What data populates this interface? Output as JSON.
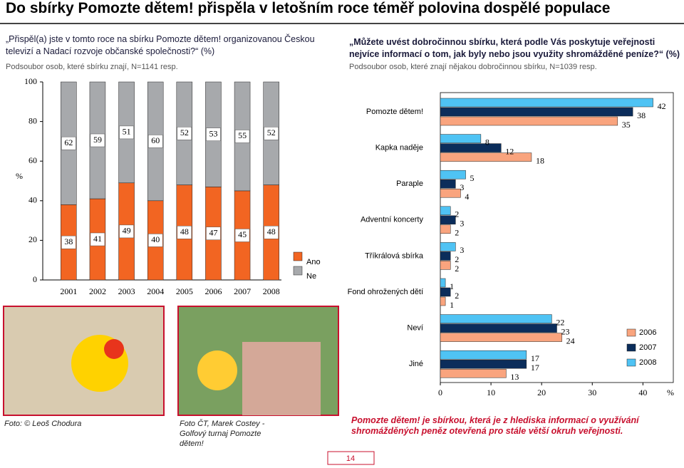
{
  "header": {
    "title": "Do sbírky Pomozte dětem! přispěla v letošním roce téměř polovina dospělé populace"
  },
  "left_question": {
    "question": "„Přispěl(a) jste v tomto roce na sbírku Pomozte dětem! organizovanou Českou televizí a Nadací rozvoje občanské společnosti?“ (%)",
    "subtitle": "Podsoubor osob, které sbírku znají, N=1141 resp."
  },
  "right_question": {
    "question": "„Můžete uvést dobročinnou sbírku, která podle Vás poskytuje veřejnosti nejvíce informací o tom, jak byly nebo jsou využity shromážděné peníze?“ (%)",
    "subtitle": "Podsoubor osob, které znají nějakou dobročinnou sbírku, N=1039 resp."
  },
  "chart_data": [
    {
      "type": "stacked_bar",
      "y_label": "%",
      "categories": [
        "2001",
        "2002",
        "2003",
        "2004",
        "2005",
        "2006",
        "2007",
        "2008"
      ],
      "series": [
        {
          "name": "Ano",
          "color": "#f26522",
          "values": [
            38,
            41,
            49,
            40,
            48,
            47,
            45,
            48
          ]
        },
        {
          "name": "Ne",
          "color": "#a7a9ac",
          "values": [
            62,
            59,
            51,
            60,
            52,
            53,
            55,
            52
          ]
        }
      ],
      "ylim": [
        0,
        100
      ],
      "yticks": [
        0,
        20,
        40,
        60,
        80,
        100
      ]
    },
    {
      "type": "horizontal_bar",
      "x_label": "%",
      "categories": [
        "Pomozte dětem!",
        "Kapka naděje",
        "Paraple",
        "Adventní koncerty",
        "Tříkrálová sbírka",
        "Fond ohrožených dětí",
        "Neví",
        "Jiné"
      ],
      "series": [
        {
          "name": "2006",
          "color": "#f9a47e",
          "values": [
            35,
            18,
            4,
            2,
            2,
            1,
            24,
            13
          ]
        },
        {
          "name": "2007",
          "color": "#0b2d5b",
          "values": [
            38,
            12,
            3,
            3,
            2,
            2,
            23,
            17
          ]
        },
        {
          "name": "2008",
          "color": "#4fc3f4",
          "values": [
            42,
            8,
            5,
            2,
            3,
            1,
            22,
            17
          ]
        }
      ],
      "xlim": [
        0,
        46
      ],
      "xticks": [
        0,
        10,
        20,
        30,
        40
      ]
    }
  ],
  "captions": [
    "Foto: © Leoš Chodura",
    "Foto ČT, Marek Costey - Golfový turnaj Pomozte dětem!"
  ],
  "note": "Pomozte dětem! je sbírkou, která je z hlediska informací o využívání shromážděných peněz otevřená pro stále větší okruh veřejnosti.",
  "page_number": "14"
}
